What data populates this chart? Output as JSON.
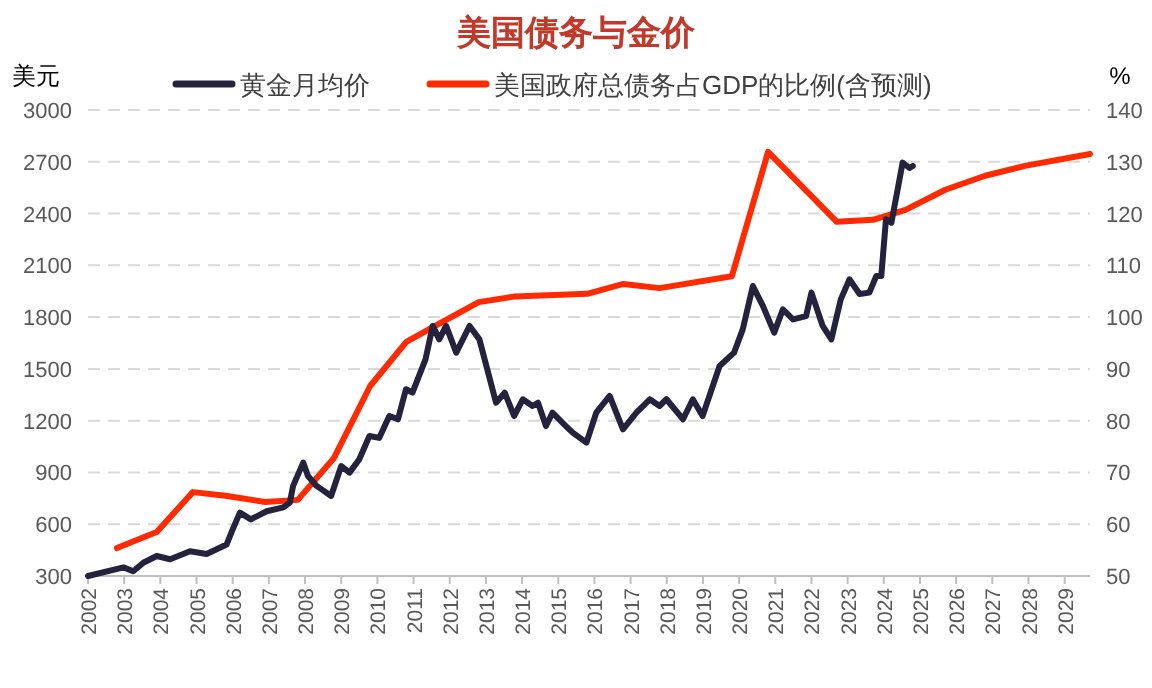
{
  "chart_data": {
    "type": "line",
    "title": "美国债务与金价",
    "ylabel": "美元",
    "y2label": "%",
    "legend": "top",
    "grid": "y",
    "line_style": "solid",
    "xlim": [
      2002,
      2029.7
    ],
    "xticks": [
      2002,
      2003,
      2004,
      2005,
      2006,
      2007,
      2008,
      2009,
      2010,
      2011,
      2012,
      2013,
      2014,
      2015,
      2016,
      2017,
      2018,
      2019,
      2020,
      2021,
      2022,
      2023,
      2024,
      2025,
      2026,
      2027,
      2028,
      2029
    ],
    "ylim": [
      300,
      3000
    ],
    "yticks": [
      300,
      600,
      900,
      1200,
      1500,
      1800,
      2100,
      2400,
      2700,
      3000
    ],
    "y2lim": [
      50,
      140
    ],
    "y2ticks": [
      50,
      60,
      70,
      80,
      90,
      100,
      110,
      120,
      130,
      140
    ],
    "series": [
      {
        "name": "黄金月均价",
        "color": "#25223d",
        "x": [
          2002.0,
          2002.98,
          2003.25,
          2003.53,
          2003.9,
          2004.27,
          2004.82,
          2005.28,
          2005.83,
          2006.0,
          2006.2,
          2006.5,
          2006.94,
          2007.4,
          2007.58,
          2007.67,
          2007.95,
          2008.08,
          2008.32,
          2008.72,
          2009.0,
          2009.23,
          2009.5,
          2009.78,
          2010.05,
          2010.33,
          2010.57,
          2010.79,
          2010.97,
          2011.33,
          2011.53,
          2011.71,
          2011.9,
          2012.18,
          2012.55,
          2012.82,
          2013.28,
          2013.52,
          2013.78,
          2014.02,
          2014.29,
          2014.44,
          2014.66,
          2014.84,
          2015.21,
          2015.4,
          2015.78,
          2016.05,
          2016.42,
          2016.79,
          2017.16,
          2017.53,
          2017.8,
          2017.99,
          2018.45,
          2018.72,
          2018.99,
          2019.46,
          2019.86,
          2020.1,
          2020.38,
          2020.66,
          2020.97,
          2021.21,
          2021.49,
          2021.85,
          2022.0,
          2022.31,
          2022.55,
          2022.81,
          2023.05,
          2023.33,
          2023.6,
          2023.79,
          2023.93,
          2024.06,
          2024.21,
          2024.4,
          2024.52,
          2024.71,
          2024.8
        ],
        "values": [
          300,
          350,
          327,
          377,
          416,
          397,
          443,
          427,
          482,
          570,
          667,
          628,
          675,
          698,
          725,
          822,
          957,
          879,
          822,
          764,
          937,
          899,
          976,
          1111,
          1100,
          1227,
          1208,
          1382,
          1362,
          1555,
          1749,
          1671,
          1749,
          1594,
          1749,
          1671,
          1304,
          1362,
          1227,
          1324,
          1285,
          1304,
          1169,
          1246,
          1169,
          1131,
          1073,
          1246,
          1343,
          1150,
          1246,
          1324,
          1285,
          1324,
          1208,
          1324,
          1227,
          1517,
          1594,
          1729,
          1980,
          1864,
          1710,
          1845,
          1787,
          1806,
          1942,
          1749,
          1671,
          1903,
          2019,
          1934,
          1942,
          2038,
          2038,
          2367,
          2347,
          2560,
          2695,
          2664,
          2676
        ]
      },
      {
        "name": "美国政府总债务占GDP的比例(含预测)",
        "color": "#ff2a00",
        "axis": "y2",
        "x": [
          2002.8,
          2003.9,
          2004.9,
          2005.8,
          2006.9,
          2007.8,
          2008.8,
          2009.8,
          2010.8,
          2011.7,
          2012.8,
          2013.8,
          2015.8,
          2016.8,
          2017.8,
          2019.8,
          2020.8,
          2022.7,
          2023.7,
          2024.6,
          2025.7,
          2026.8,
          2027.9,
          2029.7
        ],
        "values": [
          55.4,
          58.5,
          66.2,
          65.5,
          64.3,
          64.7,
          72.8,
          86.7,
          95.2,
          98.7,
          102.9,
          104,
          104.5,
          106.4,
          105.6,
          107.9,
          131.9,
          118.4,
          118.8,
          120.7,
          124.6,
          127.3,
          129.2,
          131.5
        ]
      }
    ]
  }
}
